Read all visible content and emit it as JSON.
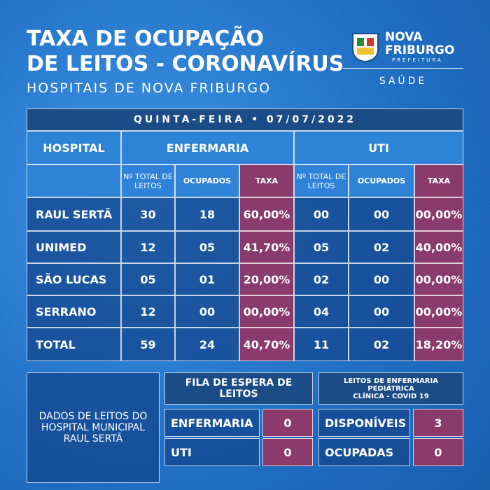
{
  "header": {
    "title_lines": [
      "TAXA DE OCUPAÇÃO",
      "DE LEITOS - CORONAVÍRUS"
    ],
    "subtitle": "HOSPITAIS DE NOVA FRIBURGO"
  },
  "logo": {
    "name_lines": [
      "NOVA",
      "FRIBURGO"
    ],
    "tagline": "PREFEITURA",
    "department": "SAÚDE"
  },
  "table": {
    "date": "QUINTA-FEIRA • 07/07/2022",
    "groups": [
      "HOSPITAL",
      "ENFERMARIA",
      "UTI"
    ],
    "subheaders": [
      "Nº TOTAL DE LEITOS",
      "OCUPADOS",
      "TAXA",
      "Nº TOTAL DE LEITOS",
      "OCUPADOS",
      "TAXA"
    ],
    "rows": [
      [
        "RAUL SERTÃ",
        "30",
        "18",
        "60,00%",
        "00",
        "00",
        "00,00%"
      ],
      [
        "UNIMED",
        "12",
        "05",
        "41,70%",
        "05",
        "02",
        "40,00%"
      ],
      [
        "SÃO LUCAS",
        "05",
        "01",
        "20,00%",
        "02",
        "00",
        "00,00%"
      ],
      [
        "SERRANO",
        "12",
        "00",
        "00,00%",
        "04",
        "00",
        "00,00%"
      ],
      [
        "TOTAL",
        "59",
        "24",
        "40,70%",
        "11",
        "02",
        "18,20%"
      ]
    ]
  },
  "note": "DADOS DE LEITOS DO HOSPITAL MUNICIPAL RAUL SERTÃ",
  "queue": {
    "title": "FILA DE ESPERA DE LEITOS",
    "rows": [
      [
        "ENFERMARIA",
        "0"
      ],
      [
        "UTI",
        "0"
      ]
    ]
  },
  "pediatric": {
    "title_lines": [
      "LEITOS DE ENFERMARIA",
      "PEDIÁTRICA",
      "CLÍNICA - COVID 19"
    ],
    "rows": [
      [
        "DISPONÍVEIS",
        "3"
      ],
      [
        "OCUPADAS",
        "0"
      ]
    ]
  }
}
